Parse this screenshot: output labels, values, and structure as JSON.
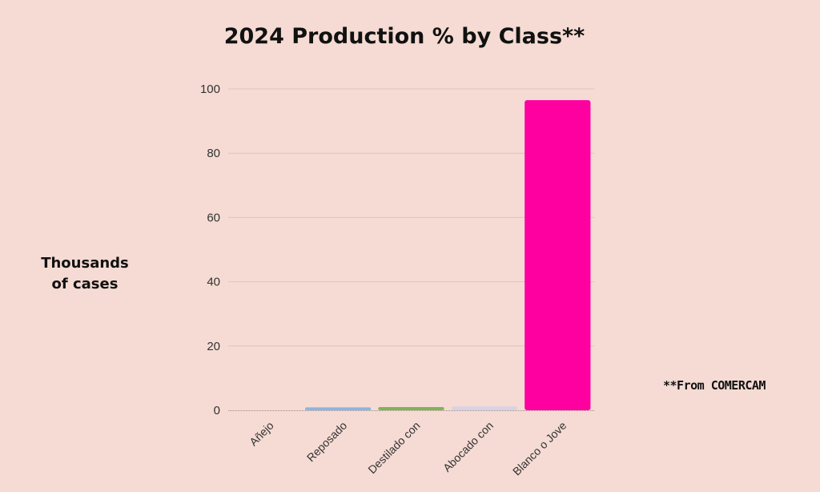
{
  "chart_data": {
    "type": "bar",
    "title": "2024 Production % by Class**",
    "ylabel_lines": [
      "Thousands",
      "of cases"
    ],
    "categories": [
      "Añejo",
      "Reposado",
      "Destilado con",
      "Abocado con",
      "Blanco o Jove"
    ],
    "values": [
      0,
      0.9,
      1.0,
      1.2,
      96.5
    ],
    "colors": [
      "#a0a0a0",
      "#8ab6e2",
      "#7fb35a",
      "#d9d2e6",
      "#ff00a0"
    ],
    "ylim": [
      0,
      100
    ],
    "yticks": [
      0,
      20,
      40,
      60,
      80,
      100
    ],
    "grid": true,
    "legend": "none"
  },
  "note": "**From COMERCAM"
}
